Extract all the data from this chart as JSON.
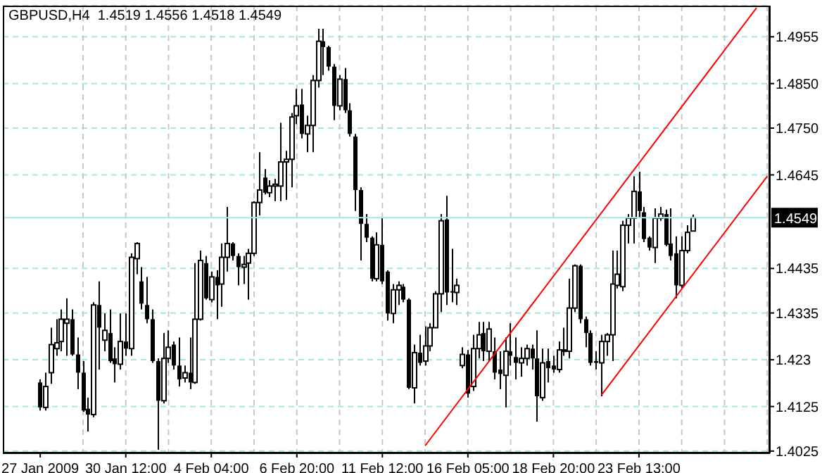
{
  "chart_data": {
    "type": "candlestick",
    "title": "GBPUSD,H4  1.4519 1.4556 1.4518 1.4549",
    "color": "#000000",
    "categories": [
      "27 Jan 2009",
      null,
      null,
      null,
      null,
      null,
      null,
      null,
      null,
      null,
      null,
      null,
      null,
      null,
      null,
      null,
      "30 Jan 12:00",
      null,
      null,
      null,
      null,
      null,
      null,
      null,
      null,
      null,
      null,
      null,
      null,
      null,
      null,
      null,
      "4 Feb 04:00",
      null,
      null,
      null,
      null,
      null,
      null,
      null,
      null,
      null,
      null,
      null,
      null,
      null,
      null,
      null,
      "6 Feb 20:00",
      null,
      null,
      null,
      null,
      null,
      null,
      null,
      null,
      null,
      null,
      null,
      null,
      null,
      null,
      null,
      "11 Feb 12:00",
      null,
      null,
      null,
      null,
      null,
      null,
      null,
      null,
      null,
      null,
      null,
      null,
      null,
      null,
      null,
      "16 Feb 05:00",
      null,
      null,
      null,
      null,
      null,
      null,
      null,
      null,
      null,
      null,
      null,
      null,
      null,
      null,
      null,
      "18 Feb 20:00",
      null,
      null,
      null,
      null,
      null,
      null,
      null,
      null,
      null,
      null,
      null,
      null,
      null,
      null,
      null,
      "23 Feb 13:00",
      null,
      null,
      null,
      null,
      null,
      null,
      null,
      null,
      null,
      null,
      null,
      null,
      null,
      null,
      null,
      null,
      null,
      null,
      null,
      null,
      null,
      null,
      null,
      null
    ],
    "ohlc": [
      [
        1.4179,
        1.4186,
        1.4116,
        1.4123
      ],
      [
        1.4123,
        1.4201,
        1.4116,
        1.417
      ],
      [
        1.4201,
        1.4302,
        1.4176,
        1.4264
      ],
      [
        1.4255,
        1.4321,
        1.4239,
        1.4268
      ],
      [
        1.4271,
        1.4343,
        1.4249,
        1.4321
      ],
      [
        1.4312,
        1.4368,
        1.4239,
        1.4321
      ],
      [
        1.4321,
        1.4343,
        1.4239,
        1.4242
      ],
      [
        1.4242,
        1.428,
        1.4164,
        1.4201
      ],
      [
        1.4201,
        1.4227,
        1.4113,
        1.4116
      ],
      [
        1.412,
        1.4145,
        1.4069,
        1.4107
      ],
      [
        1.4107,
        1.4359,
        1.4101,
        1.4353
      ],
      [
        1.4353,
        1.4406,
        1.4208,
        1.4302
      ],
      [
        1.4274,
        1.4334,
        1.4249,
        1.4296
      ],
      [
        1.429,
        1.4343,
        1.4223,
        1.4227
      ],
      [
        1.4233,
        1.4258,
        1.4179,
        1.422
      ],
      [
        1.422,
        1.4334,
        1.4208,
        1.4271
      ],
      [
        1.4271,
        1.4334,
        1.4239,
        1.4255
      ],
      [
        1.4255,
        1.4469,
        1.4239,
        1.446
      ],
      [
        1.4457,
        1.4494,
        1.4422,
        1.4491
      ],
      [
        1.4406,
        1.4438,
        1.4343,
        1.4356
      ],
      [
        1.4353,
        1.4416,
        1.4312,
        1.4321
      ],
      [
        1.4321,
        1.4343,
        1.4223,
        1.4227
      ],
      [
        1.4227,
        1.4233,
        1.4028,
        1.4138
      ],
      [
        1.4138,
        1.429,
        1.4132,
        1.4233
      ],
      [
        1.4233,
        1.4296,
        1.4223,
        1.4258
      ],
      [
        1.4264,
        1.4271,
        1.4208,
        1.4217
      ],
      [
        1.4217,
        1.428,
        1.417,
        1.4186
      ],
      [
        1.4189,
        1.4217,
        1.4179,
        1.4201
      ],
      [
        1.4201,
        1.428,
        1.4164,
        1.4179
      ],
      [
        1.4179,
        1.4447,
        1.4176,
        1.4321
      ],
      [
        1.4321,
        1.4475,
        1.4318,
        1.4453
      ],
      [
        1.4447,
        1.4463,
        1.4365,
        1.4368
      ],
      [
        1.4365,
        1.4428,
        1.4359,
        1.4416
      ],
      [
        1.4416,
        1.4431,
        1.4321,
        1.4397
      ],
      [
        1.44,
        1.4491,
        1.4349,
        1.446
      ],
      [
        1.446,
        1.4573,
        1.4428,
        1.4491
      ],
      [
        1.4491,
        1.4494,
        1.4453,
        1.4463
      ],
      [
        1.4463,
        1.4469,
        1.4397,
        1.4438
      ],
      [
        1.4438,
        1.4463,
        1.44,
        1.4444
      ],
      [
        1.4447,
        1.4479,
        1.4365,
        1.4469
      ],
      [
        1.4469,
        1.4586,
        1.4463,
        1.4583
      ],
      [
        1.4583,
        1.4696,
        1.4554,
        1.4611
      ],
      [
        1.4639,
        1.4658,
        1.4601,
        1.4605
      ],
      [
        1.4605,
        1.4633,
        1.4595,
        1.462
      ],
      [
        1.462,
        1.4636,
        1.4586,
        1.4624
      ],
      [
        1.462,
        1.4762,
        1.4586,
        1.4674
      ],
      [
        1.4674,
        1.4699,
        1.4589,
        1.468
      ],
      [
        1.468,
        1.4784,
        1.4617,
        1.4775
      ],
      [
        1.4778,
        1.4838,
        1.4759,
        1.48
      ],
      [
        1.4803,
        1.4838,
        1.4727,
        1.4737
      ],
      [
        1.4737,
        1.4778,
        1.4696,
        1.4756
      ],
      [
        1.4756,
        1.4869,
        1.4696,
        1.4857
      ],
      [
        1.4857,
        1.4973,
        1.4841,
        1.4945
      ],
      [
        1.4945,
        1.4973,
        1.4869,
        1.4932
      ],
      [
        1.4932,
        1.4935,
        1.4879,
        1.4888
      ],
      [
        1.4888,
        1.4894,
        1.4768,
        1.48
      ],
      [
        1.48,
        1.4869,
        1.479,
        1.486
      ],
      [
        1.486,
        1.4885,
        1.4784,
        1.479
      ],
      [
        1.479,
        1.4806,
        1.4731,
        1.4737
      ],
      [
        1.4731,
        1.4737,
        1.4564,
        1.4611
      ],
      [
        1.4611,
        1.4617,
        1.4453,
        1.4535
      ],
      [
        1.4535,
        1.4557,
        1.4494,
        1.4504
      ],
      [
        1.4504,
        1.4507,
        1.4406,
        1.4412
      ],
      [
        1.4412,
        1.4516,
        1.4406,
        1.4488
      ],
      [
        1.4488,
        1.4548,
        1.44,
        1.4406
      ],
      [
        1.4428,
        1.4431,
        1.4318,
        1.4334
      ],
      [
        1.4334,
        1.44,
        1.4312,
        1.4387
      ],
      [
        1.4387,
        1.4406,
        1.4353,
        1.4397
      ],
      [
        1.4394,
        1.44,
        1.4359,
        1.4365
      ],
      [
        1.4365,
        1.4368,
        1.4164,
        1.4167
      ],
      [
        1.4167,
        1.4264,
        1.4132,
        1.4246
      ],
      [
        1.4246,
        1.4286,
        1.4217,
        1.4223
      ],
      [
        1.4227,
        1.4305,
        1.4217,
        1.4261
      ],
      [
        1.4261,
        1.4312,
        1.4249,
        1.4302
      ],
      [
        1.4302,
        1.4384,
        1.4302,
        1.4378
      ],
      [
        1.4378,
        1.4557,
        1.4337,
        1.4542
      ],
      [
        1.4545,
        1.4598,
        1.4353,
        1.4381
      ],
      [
        1.4384,
        1.4479,
        1.4359,
        1.4381
      ],
      [
        1.4381,
        1.4412,
        1.4353,
        1.4397
      ],
      [
        1.4217,
        1.4258,
        1.4211,
        1.4242
      ],
      [
        1.4242,
        1.4252,
        1.4145,
        1.4154
      ],
      [
        1.417,
        1.4286,
        1.416,
        1.4255
      ],
      [
        1.4255,
        1.4315,
        1.4233,
        1.4286
      ],
      [
        1.429,
        1.4315,
        1.4227,
        1.4249
      ],
      [
        1.4249,
        1.4315,
        1.4227,
        1.4299
      ],
      [
        1.4249,
        1.428,
        1.4186,
        1.4201
      ],
      [
        1.4208,
        1.4249,
        1.4164,
        1.4198
      ],
      [
        1.4195,
        1.428,
        1.4123,
        1.4249
      ],
      [
        1.4249,
        1.4312,
        1.4217,
        1.4239
      ],
      [
        1.4236,
        1.428,
        1.4186,
        1.4223
      ],
      [
        1.4223,
        1.4258,
        1.4192,
        1.4233
      ],
      [
        1.4233,
        1.4264,
        1.4217,
        1.4255
      ],
      [
        1.4255,
        1.4264,
        1.4208,
        1.4233
      ],
      [
        1.4233,
        1.4296,
        1.4091,
        1.4148
      ],
      [
        1.4145,
        1.4255,
        1.4138,
        1.4223
      ],
      [
        1.4227,
        1.4255,
        1.4179,
        1.4211
      ],
      [
        1.4217,
        1.4239,
        1.4201,
        1.4208
      ],
      [
        1.4208,
        1.4271,
        1.4201,
        1.4252
      ],
      [
        1.4249,
        1.4302,
        1.4239,
        1.4252
      ],
      [
        1.4249,
        1.4412,
        1.4233,
        1.4346
      ],
      [
        1.4346,
        1.4444,
        1.4337,
        1.4441
      ],
      [
        1.4441,
        1.4444,
        1.4312,
        1.4321
      ],
      [
        1.4321,
        1.4327,
        1.4258,
        1.429
      ],
      [
        1.429,
        1.4296,
        1.4217,
        1.4223
      ],
      [
        1.4227,
        1.4249,
        1.4208,
        1.4223
      ],
      [
        1.4223,
        1.4286,
        1.4148,
        1.4271
      ],
      [
        1.4271,
        1.429,
        1.4239,
        1.4286
      ],
      [
        1.4286,
        1.4475,
        1.4227,
        1.44
      ],
      [
        1.4397,
        1.4475,
        1.439,
        1.4422
      ],
      [
        1.4394,
        1.4542,
        1.4384,
        1.4532
      ],
      [
        1.4532,
        1.4557,
        1.4491,
        1.4548
      ],
      [
        1.4548,
        1.4642,
        1.4491,
        1.4608
      ],
      [
        1.4608,
        1.4652,
        1.4548,
        1.4564
      ],
      [
        1.4561,
        1.4573,
        1.4494,
        1.4501
      ],
      [
        1.4504,
        1.4507,
        1.4475,
        1.4482
      ],
      [
        1.4482,
        1.457,
        1.4447,
        1.4548
      ],
      [
        1.4548,
        1.4573,
        1.4542,
        1.4557
      ],
      [
        1.4557,
        1.4567,
        1.4485,
        1.4488
      ],
      [
        1.4491,
        1.457,
        1.4453,
        1.4463
      ],
      [
        1.4469,
        1.4507,
        1.4368,
        1.4397
      ],
      [
        1.4397,
        1.4507,
        1.439,
        1.4475
      ],
      [
        1.4475,
        1.4532,
        1.4469,
        1.4516
      ],
      [
        1.4519,
        1.4556,
        1.4518,
        1.4549
      ],
      null,
      null,
      null,
      null,
      null,
      null,
      null,
      null,
      null,
      null,
      null,
      null,
      null,
      null
    ],
    "series": [
      {
        "type": "line",
        "color": "#ff0000",
        "values": [
          null,
          null,
          null,
          null,
          null,
          null,
          null,
          null,
          null,
          null,
          null,
          null,
          null,
          null,
          null,
          null,
          null,
          null,
          null,
          null,
          null,
          null,
          null,
          null,
          null,
          null,
          null,
          null,
          null,
          null,
          null,
          null,
          null,
          null,
          null,
          null,
          null,
          null,
          null,
          null,
          null,
          null,
          null,
          null,
          null,
          null,
          null,
          null,
          null,
          null,
          null,
          null,
          null,
          null,
          null,
          null,
          null,
          null,
          null,
          null,
          null,
          null,
          null,
          null,
          null,
          null,
          null,
          null,
          null,
          null,
          null,
          null,
          1.4037,
          null,
          null,
          null,
          null,
          null,
          null,
          null,
          null,
          null,
          null,
          null,
          null,
          null,
          null,
          null,
          null,
          null,
          null,
          null,
          null,
          null,
          null,
          null,
          null,
          null,
          null,
          null,
          null,
          null,
          null,
          null,
          null,
          null,
          null,
          null,
          null,
          null,
          null,
          null,
          null,
          null,
          null,
          null,
          null,
          null,
          null,
          null,
          null,
          null,
          null,
          null,
          null,
          null,
          null,
          null,
          null,
          null,
          null,
          null,
          null,
          null,
          1.502,
          null,
          null
        ]
      },
      {
        "type": "line",
        "color": "#ff0000",
        "values": [
          null,
          null,
          null,
          null,
          null,
          null,
          null,
          null,
          null,
          null,
          null,
          null,
          null,
          null,
          null,
          null,
          null,
          null,
          null,
          null,
          null,
          null,
          null,
          null,
          null,
          null,
          null,
          null,
          null,
          null,
          null,
          null,
          null,
          null,
          null,
          null,
          null,
          null,
          null,
          null,
          null,
          null,
          null,
          null,
          null,
          null,
          null,
          null,
          null,
          null,
          null,
          null,
          null,
          null,
          null,
          null,
          null,
          null,
          null,
          null,
          null,
          null,
          null,
          null,
          null,
          null,
          null,
          null,
          null,
          null,
          null,
          null,
          null,
          null,
          null,
          null,
          null,
          null,
          null,
          null,
          null,
          null,
          null,
          null,
          null,
          null,
          null,
          null,
          null,
          null,
          null,
          null,
          null,
          null,
          null,
          null,
          null,
          null,
          null,
          null,
          null,
          null,
          null,
          null,
          null,
          1.4151,
          null,
          null,
          null,
          null,
          null,
          null,
          null,
          null,
          null,
          null,
          null,
          null,
          null,
          null,
          null,
          null,
          null,
          null,
          null,
          null,
          null,
          null,
          null,
          null,
          null,
          null,
          null,
          null,
          null,
          null,
          1.4642
        ]
      }
    ],
    "ylim": [
      1.402,
      1.5025
    ],
    "yticks": [
      1.4025,
      1.4125,
      1.423,
      1.4335,
      1.4435,
      1.4645,
      {
        "value": 1.475,
        "label": "1.4750"
      },
      {
        "value": 1.485,
        "label": "1.4850"
      },
      1.4955
    ],
    "grid": true,
    "ref_lines": [
      {
        "axis": "y",
        "value": 1.4549,
        "label": "1.4549",
        "color": "#a8e6e6"
      }
    ]
  }
}
